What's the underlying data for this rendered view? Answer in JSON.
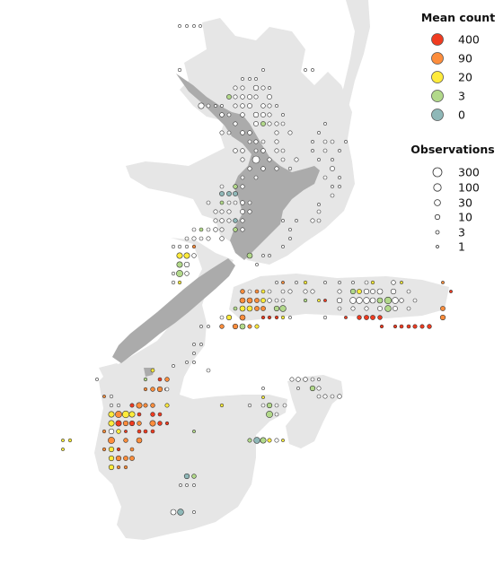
{
  "legend": {
    "mean_count": {
      "title": "Mean count",
      "items": [
        {
          "label": "400",
          "color": "#f03b20"
        },
        {
          "label": "90",
          "color": "#fd8d3c"
        },
        {
          "label": "20",
          "color": "#ffeb3b"
        },
        {
          "label": "3",
          "color": "#b2d98a"
        },
        {
          "label": "0",
          "color": "#8fb8b8"
        }
      ]
    },
    "observations": {
      "title": "Observations",
      "items": [
        {
          "label": "300"
        },
        {
          "label": "100"
        },
        {
          "label": "30"
        },
        {
          "label": "10"
        },
        {
          "label": "3"
        },
        {
          "label": "1"
        }
      ]
    }
  },
  "colors": {
    "land": "#ababab",
    "shelf": "#e6e6e6",
    "background": "#ffffff",
    "zero_fill": "#ffffff"
  }
}
